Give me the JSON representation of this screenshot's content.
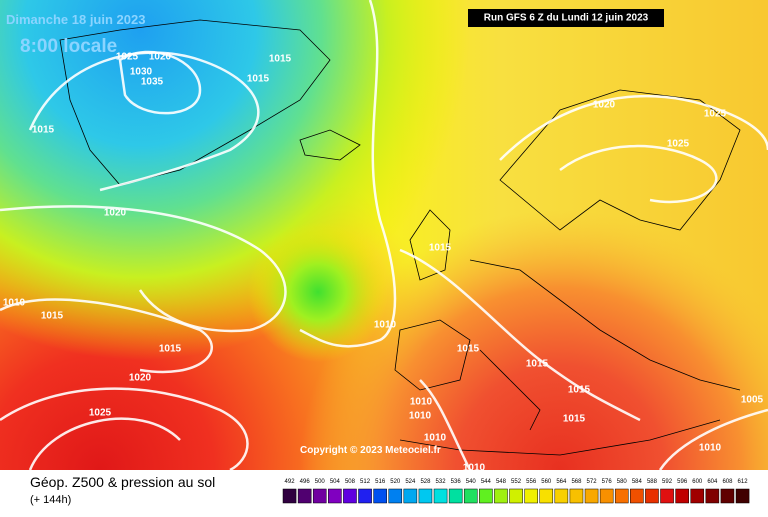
{
  "header": {
    "date": "Dimanche 18 juin 2023",
    "time": "8:00 locale",
    "run": "Run GFS 6 Z du Lundi 12 juin 2023"
  },
  "copyright": "Copyright © 2023 Meteociel.fr",
  "isobar_labels": [
    1025,
    1020,
    1030,
    1035,
    1015,
    1015,
    1015,
    1020,
    1010,
    1015,
    1015,
    1020,
    1025,
    1015,
    1010,
    1015,
    1015,
    1015,
    1015,
    1010,
    1010,
    1010,
    1010,
    1010,
    1005,
    1020,
    1025,
    1025
  ],
  "legend": {
    "title": "Géop. Z500 & pression au sol",
    "subtitle": "(+ 144h)",
    "scale": [
      492,
      496,
      500,
      504,
      508,
      512,
      516,
      520,
      524,
      528,
      532,
      536,
      540,
      544,
      548,
      552,
      556,
      560,
      564,
      568,
      572,
      576,
      580,
      584,
      588,
      592,
      596,
      600,
      604,
      608,
      612
    ],
    "colors": [
      "#300040",
      "#500070",
      "#7000a0",
      "#8000c0",
      "#6000e0",
      "#2020f0",
      "#0050f0",
      "#0080f0",
      "#00a8f0",
      "#00c8f0",
      "#00e0e0",
      "#00e0a0",
      "#20e060",
      "#60f020",
      "#a0f010",
      "#d0f000",
      "#f0f000",
      "#f8e000",
      "#f8d000",
      "#f8c000",
      "#f8a800",
      "#f89000",
      "#f87000",
      "#f05000",
      "#e83000",
      "#e01010",
      "#c00000",
      "#a00000",
      "#800000",
      "#600000",
      "#400000"
    ]
  }
}
